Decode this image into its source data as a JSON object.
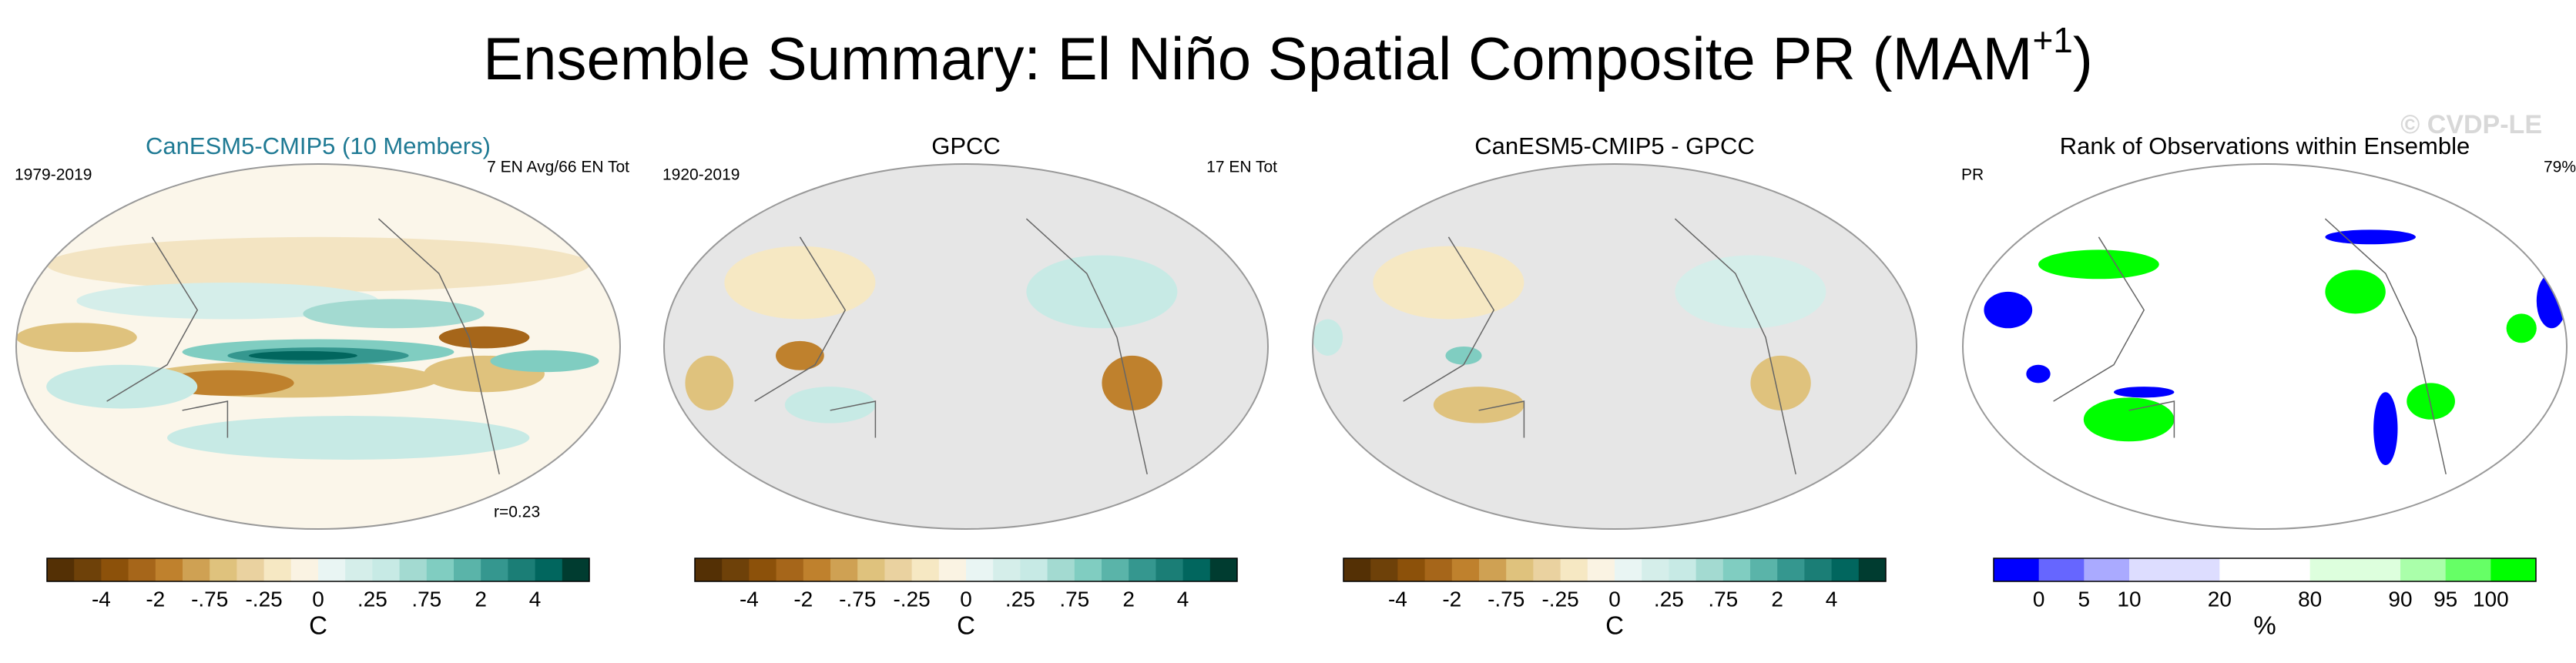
{
  "title": {
    "main": "Ensemble Summary: El Niño Spatial Composite PR (MAM",
    "superscript": "+1",
    "end": ")"
  },
  "watermark": "© CVDP-LE",
  "panels": [
    {
      "title": "CanESM5-CMIP5 (10 Members)",
      "left_label": "1979-2019",
      "right_label": "7 EN Avg/66 EN Tot",
      "annotation": "r=0.23",
      "colorbar": {
        "ticks": [
          "-4",
          "-2",
          "-.75",
          "-.25",
          "0",
          ".25",
          ".75",
          "2",
          "4"
        ],
        "unit": "C",
        "colors": [
          "#543005",
          "#6e4109",
          "#8c510a",
          "#a6661a",
          "#bf812d",
          "#cfa153",
          "#dfc27d",
          "#ead2a0",
          "#f6e8c3",
          "#faf3e3",
          "#e9f5f3",
          "#d5eeea",
          "#c7eae5",
          "#a3dad1",
          "#80cdc1",
          "#5ab4a9",
          "#35978f",
          "#1b7e76",
          "#01665e",
          "#003c30"
        ]
      }
    },
    {
      "title": "GPCC",
      "left_label": "1920-2019",
      "right_label": "17 EN Tot",
      "colorbar": {
        "ticks": [
          "-4",
          "-2",
          "-.75",
          "-.25",
          "0",
          ".25",
          ".75",
          "2",
          "4"
        ],
        "unit": "C",
        "colors": [
          "#543005",
          "#6e4109",
          "#8c510a",
          "#a6661a",
          "#bf812d",
          "#cfa153",
          "#dfc27d",
          "#ead2a0",
          "#f6e8c3",
          "#faf3e3",
          "#e9f5f3",
          "#d5eeea",
          "#c7eae5",
          "#a3dad1",
          "#80cdc1",
          "#5ab4a9",
          "#35978f",
          "#1b7e76",
          "#01665e",
          "#003c30"
        ]
      }
    },
    {
      "title": "CanESM5-CMIP5 - GPCC",
      "colorbar": {
        "ticks": [
          "-4",
          "-2",
          "-.75",
          "-.25",
          "0",
          ".25",
          ".75",
          "2",
          "4"
        ],
        "unit": "C",
        "colors": [
          "#543005",
          "#6e4109",
          "#8c510a",
          "#a6661a",
          "#bf812d",
          "#cfa153",
          "#dfc27d",
          "#ead2a0",
          "#f6e8c3",
          "#faf3e3",
          "#e9f5f3",
          "#d5eeea",
          "#c7eae5",
          "#a3dad1",
          "#80cdc1",
          "#5ab4a9",
          "#35978f",
          "#1b7e76",
          "#01665e",
          "#003c30"
        ]
      }
    },
    {
      "title": "Rank of Observations within Ensemble",
      "left_label": "PR",
      "right_label": "79%",
      "colorbar": {
        "ticks": [
          "0",
          "5",
          "10",
          "20",
          "80",
          "90",
          "95",
          "100"
        ],
        "unit": "%",
        "colors": [
          "#0000ff",
          "#6666ff",
          "#aaaaff",
          "#ddddff",
          "#ddddff",
          "#ffffff",
          "#ffffff",
          "#ddffdd",
          "#ddffdd",
          "#aaffaa",
          "#66ff66",
          "#00ff00"
        ]
      }
    }
  ]
}
